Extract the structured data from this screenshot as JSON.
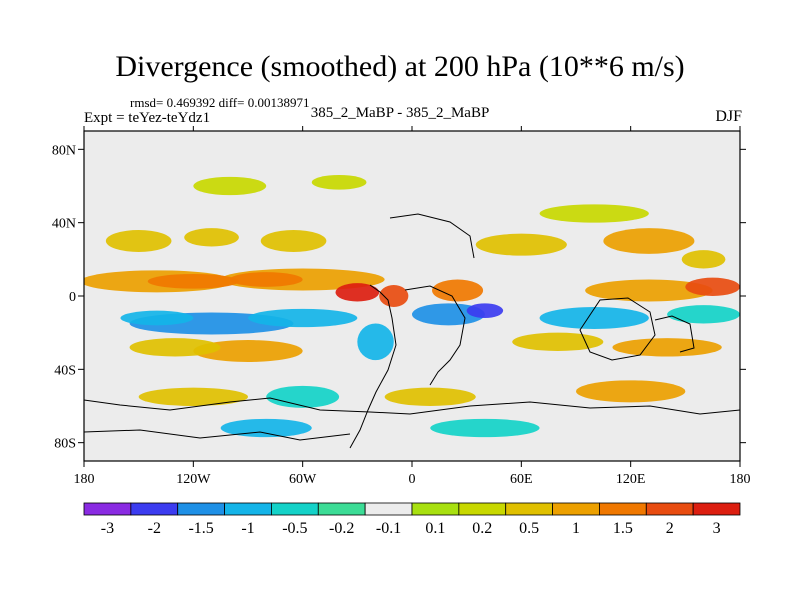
{
  "chart_data": {
    "type": "heatmap",
    "title": "Divergence (smoothed) at 200 hPa (10**6 m/s)",
    "stats_text": "rmsd= 0.469392 diff= 0.00138971",
    "experiment_text": "Expt = teYez-teYdz1",
    "comparison_text": "385_2_MaBP - 385_2_MaBP",
    "season": "DJF",
    "x_axis": {
      "range": [
        -180,
        180
      ],
      "ticks": [
        {
          "value": -180,
          "label": "180"
        },
        {
          "value": -120,
          "label": "120W"
        },
        {
          "value": -60,
          "label": "60W"
        },
        {
          "value": 0,
          "label": "0"
        },
        {
          "value": 60,
          "label": "60E"
        },
        {
          "value": 120,
          "label": "120E"
        },
        {
          "value": 180,
          "label": "180"
        }
      ]
    },
    "y_axis": {
      "range": [
        -90,
        90
      ],
      "ticks": [
        {
          "value": 80,
          "label": "80N"
        },
        {
          "value": 40,
          "label": "40N"
        },
        {
          "value": 0,
          "label": "0"
        },
        {
          "value": -40,
          "label": "40S"
        },
        {
          "value": -80,
          "label": "80S"
        }
      ]
    },
    "colorbar": {
      "colors": [
        "#8a2be2",
        "#3c3cf0",
        "#1e90e6",
        "#14b4e8",
        "#14d2c8",
        "#3cdc96",
        "#ececec",
        "#a8e010",
        "#c8d800",
        "#e0c000",
        "#eca000",
        "#f07800",
        "#e84c10",
        "#dc1e10"
      ],
      "labels": [
        "-3",
        "-2",
        "-1.5",
        "-1",
        "-0.5",
        "-0.2",
        "-0.1",
        "0.1",
        "0.2",
        "0.5",
        "1",
        "1.5",
        "2",
        "3"
      ]
    },
    "blobs": [
      {
        "lon": -140,
        "lat": 8,
        "rx": 42,
        "ry": 6,
        "level": 10
      },
      {
        "lon": -60,
        "lat": 9,
        "rx": 45,
        "ry": 6,
        "level": 10
      },
      {
        "lon": -120,
        "lat": 8,
        "rx": 25,
        "ry": 4,
        "level": 11
      },
      {
        "lon": -80,
        "lat": 9,
        "rx": 20,
        "ry": 4,
        "level": 11
      },
      {
        "lon": -30,
        "lat": 2,
        "rx": 12,
        "ry": 5,
        "level": 13
      },
      {
        "lon": -10,
        "lat": 0,
        "rx": 8,
        "ry": 6,
        "level": 12
      },
      {
        "lon": 25,
        "lat": 3,
        "rx": 14,
        "ry": 6,
        "level": 11
      },
      {
        "lon": 130,
        "lat": 3,
        "rx": 35,
        "ry": 6,
        "level": 10
      },
      {
        "lon": 165,
        "lat": 5,
        "rx": 15,
        "ry": 5,
        "level": 12
      },
      {
        "lon": -150,
        "lat": 30,
        "rx": 18,
        "ry": 6,
        "level": 9
      },
      {
        "lon": -110,
        "lat": 32,
        "rx": 15,
        "ry": 5,
        "level": 9
      },
      {
        "lon": -65,
        "lat": 30,
        "rx": 18,
        "ry": 6,
        "level": 9
      },
      {
        "lon": 60,
        "lat": 28,
        "rx": 25,
        "ry": 6,
        "level": 9
      },
      {
        "lon": 130,
        "lat": 30,
        "rx": 25,
        "ry": 7,
        "level": 10
      },
      {
        "lon": 160,
        "lat": 20,
        "rx": 12,
        "ry": 5,
        "level": 9
      },
      {
        "lon": -100,
        "lat": 60,
        "rx": 20,
        "ry": 5,
        "level": 8
      },
      {
        "lon": -40,
        "lat": 62,
        "rx": 15,
        "ry": 4,
        "level": 8
      },
      {
        "lon": 100,
        "lat": 45,
        "rx": 30,
        "ry": 5,
        "level": 8
      },
      {
        "lon": -110,
        "lat": -15,
        "rx": 45,
        "ry": 6,
        "level": 2
      },
      {
        "lon": -140,
        "lat": -12,
        "rx": 20,
        "ry": 4,
        "level": 3
      },
      {
        "lon": -60,
        "lat": -12,
        "rx": 30,
        "ry": 5,
        "level": 3
      },
      {
        "lon": 20,
        "lat": -10,
        "rx": 20,
        "ry": 6,
        "level": 2
      },
      {
        "lon": 40,
        "lat": -8,
        "rx": 10,
        "ry": 4,
        "level": 1
      },
      {
        "lon": 100,
        "lat": -12,
        "rx": 30,
        "ry": 6,
        "level": 3
      },
      {
        "lon": 160,
        "lat": -10,
        "rx": 20,
        "ry": 5,
        "level": 4
      },
      {
        "lon": -90,
        "lat": -30,
        "rx": 30,
        "ry": 6,
        "level": 10
      },
      {
        "lon": -130,
        "lat": -28,
        "rx": 25,
        "ry": 5,
        "level": 9
      },
      {
        "lon": 80,
        "lat": -25,
        "rx": 25,
        "ry": 5,
        "level": 9
      },
      {
        "lon": 140,
        "lat": -28,
        "rx": 30,
        "ry": 5,
        "level": 10
      },
      {
        "lon": -20,
        "lat": -25,
        "rx": 10,
        "ry": 10,
        "level": 3
      },
      {
        "lon": -120,
        "lat": -55,
        "rx": 30,
        "ry": 5,
        "level": 9
      },
      {
        "lon": -60,
        "lat": -55,
        "rx": 20,
        "ry": 6,
        "level": 4
      },
      {
        "lon": 10,
        "lat": -55,
        "rx": 25,
        "ry": 5,
        "level": 9
      },
      {
        "lon": 120,
        "lat": -52,
        "rx": 30,
        "ry": 6,
        "level": 10
      },
      {
        "lon": -80,
        "lat": -72,
        "rx": 25,
        "ry": 5,
        "level": 3
      },
      {
        "lon": 40,
        "lat": -72,
        "rx": 30,
        "ry": 5,
        "level": 4
      }
    ]
  }
}
